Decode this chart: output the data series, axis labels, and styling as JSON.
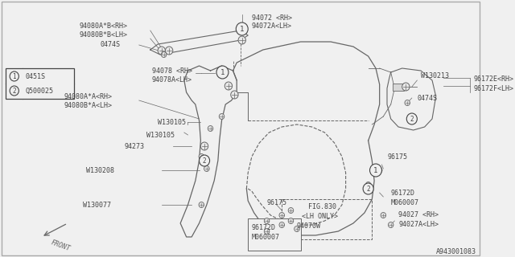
{
  "diagram_id": "A943001083",
  "bg_color": "#f0f0f0",
  "line_color": "#666666",
  "text_color": "#444444",
  "border_color": "#aaaaaa",
  "legend": [
    {
      "symbol": "1",
      "label": "0451S"
    },
    {
      "symbol": "2",
      "label": "Q500025"
    }
  ],
  "figsize": [
    6.4,
    3.2
  ],
  "dpi": 100
}
